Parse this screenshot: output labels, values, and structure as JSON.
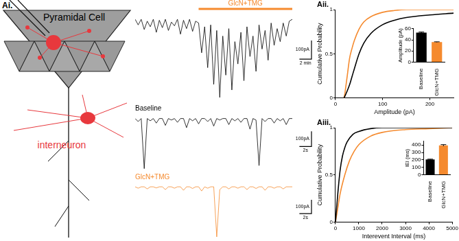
{
  "figure": {
    "panel_label": "Ai.",
    "cell_label": "Pyramidal Cell",
    "interneuron_label": "interneuron"
  },
  "chart_data": [
    {
      "type": "line",
      "tick_labels": false,
      "grid": false,
      "color": "#000000",
      "xlim": [
        0,
        1560
      ],
      "ylim": [
        -450,
        30
      ],
      "x": [
        0,
        30,
        60,
        90,
        120,
        150,
        180,
        210,
        240,
        270,
        300,
        330,
        360,
        390,
        420,
        450,
        480,
        510,
        540,
        570,
        600,
        630,
        660,
        690,
        720,
        750,
        780,
        810,
        840,
        870,
        900,
        930,
        960,
        990,
        1020,
        1050,
        1080,
        1110,
        1140,
        1170,
        1200,
        1230,
        1260,
        1290,
        1320,
        1350,
        1380,
        1410,
        1440,
        1470,
        1500,
        1530,
        1560
      ],
      "values": [
        0,
        -30,
        0,
        -55,
        -10,
        -40,
        0,
        -70,
        -5,
        -45,
        0,
        -60,
        -15,
        -35,
        0,
        -80,
        -5,
        -50,
        0,
        -65,
        -10,
        -20,
        -180,
        -40,
        -260,
        -30,
        -350,
        -60,
        -420,
        -90,
        -300,
        -50,
        -380,
        -120,
        -240,
        -70,
        -330,
        -40,
        -200,
        -90,
        -280,
        -30,
        -160,
        -60,
        -220,
        -20,
        -140,
        -50,
        -120,
        -20,
        -90,
        -10,
        0
      ],
      "drug": {
        "label": "GlcN+TMG",
        "color": "#f58a2e",
        "start": 630,
        "end": 1560
      },
      "scale_bar": {
        "x": 120,
        "x_label": "2 min",
        "y": 100,
        "y_label": "100pA"
      }
    },
    {
      "type": "line",
      "title": "Baseline",
      "tick_labels": false,
      "grid": false,
      "color": "#000000",
      "xlim": [
        0,
        26
      ],
      "ylim": [
        -350,
        30
      ],
      "x": [
        0,
        0.5,
        1,
        1.5,
        2,
        2.5,
        3,
        3.5,
        4,
        4.5,
        5,
        5.5,
        6,
        6.5,
        7,
        7.5,
        8,
        8.5,
        9,
        9.5,
        10,
        10.5,
        11,
        11.5,
        12,
        12.5,
        13,
        13.5,
        14,
        14.5,
        15,
        15.5,
        16,
        16.5,
        17,
        17.5,
        18,
        18.5,
        19,
        19.5,
        20,
        20.5,
        21,
        21.5,
        22,
        22.5,
        23,
        23.5,
        24,
        24.5,
        25,
        25.5,
        26
      ],
      "values": [
        0,
        -20,
        0,
        -330,
        0,
        -15,
        0,
        -30,
        0,
        0,
        -45,
        0,
        -10,
        0,
        -25,
        0,
        0,
        -60,
        0,
        -15,
        0,
        -35,
        0,
        0,
        -20,
        0,
        -50,
        0,
        -10,
        0,
        0,
        -40,
        0,
        -15,
        0,
        -25,
        0,
        0,
        -70,
        0,
        -10,
        -310,
        0,
        -20,
        0,
        0,
        -30,
        0,
        -15,
        0,
        -40,
        0,
        0
      ],
      "scale_bar": {
        "x": 2,
        "x_label": "2s",
        "y": 100,
        "y_label": "100pA"
      }
    },
    {
      "type": "line",
      "title": "GlcN+TMG",
      "tick_labels": false,
      "grid": false,
      "color": "#f58a2e",
      "xlim": [
        0,
        26
      ],
      "ylim": [
        -380,
        30
      ],
      "x": [
        0,
        0.5,
        1,
        1.5,
        2,
        2.5,
        3,
        3.5,
        4,
        4.5,
        5,
        5.5,
        6,
        6.5,
        7,
        7.5,
        8,
        8.5,
        9,
        9.5,
        10,
        10.5,
        11,
        11.5,
        12,
        12.5,
        13,
        13.5,
        14,
        14.5,
        15,
        15.5,
        16,
        16.5,
        17,
        17.5,
        18,
        18.5,
        19,
        19.5,
        20,
        20.5,
        21,
        21.5,
        22,
        22.5,
        23,
        23.5,
        24,
        24.5,
        25,
        25.5,
        26
      ],
      "values": [
        0,
        -10,
        0,
        0,
        -15,
        0,
        0,
        -8,
        0,
        0,
        -20,
        0,
        0,
        -10,
        0,
        0,
        -25,
        0,
        0,
        -12,
        0,
        0,
        -30,
        0,
        -10,
        0,
        0,
        -360,
        -20,
        0,
        0,
        -15,
        0,
        0,
        -10,
        0,
        0,
        -20,
        0,
        0,
        -12,
        0,
        0,
        -25,
        0,
        0,
        -10,
        0,
        0,
        -15,
        0,
        0,
        0
      ],
      "scale_bar": {
        "x": 2,
        "x_label": "2s",
        "y": 100,
        "y_label": "100pA"
      }
    },
    {
      "type": "line",
      "annotations": [
        "Aii."
      ],
      "x_label": "Amplitude (pA)",
      "y_label": "Cumulative Probability",
      "xlim": [
        0,
        250
      ],
      "xticks": [
        0,
        100,
        200
      ],
      "ylim": [
        0,
        1
      ],
      "yticks": [
        0,
        0.5,
        1
      ],
      "grid": false,
      "series": [
        {
          "color": "#000000",
          "x": [
            18,
            20,
            25,
            30,
            35,
            40,
            50,
            60,
            75,
            100,
            125,
            150,
            200,
            250
          ],
          "values": [
            0,
            0.02,
            0.08,
            0.15,
            0.24,
            0.33,
            0.5,
            0.62,
            0.73,
            0.83,
            0.88,
            0.91,
            0.94,
            0.96
          ]
        },
        {
          "color": "#f58a2e",
          "x": [
            18,
            20,
            22,
            25,
            30,
            35,
            40,
            50,
            60,
            75,
            100,
            125,
            150,
            200,
            250
          ],
          "values": [
            0,
            0.05,
            0.13,
            0.25,
            0.45,
            0.56,
            0.65,
            0.78,
            0.86,
            0.92,
            0.97,
            0.99,
            1,
            1,
            1
          ]
        }
      ]
    },
    {
      "type": "bar",
      "y_label": "Amplitude (pA)",
      "categories": [
        "Baseline",
        "GlcN+TMG"
      ],
      "values": [
        53,
        36
      ],
      "errors": [
        1,
        0.5
      ],
      "colors": [
        "#000000",
        "#f58a2e"
      ],
      "ylim": [
        0,
        60
      ],
      "yticks": [
        0,
        20,
        40,
        60
      ],
      "grid": false
    },
    {
      "type": "line",
      "annotations": [
        "Aiii."
      ],
      "x_label": "Interevent Interval (ms)",
      "y_label": "Cumulative Probability",
      "xlim": [
        0,
        5000
      ],
      "xticks": [
        0,
        1000,
        2000,
        3000,
        4000,
        5000
      ],
      "ylim": [
        0,
        1
      ],
      "yticks": [
        0,
        0.5,
        1
      ],
      "grid": false,
      "series": [
        {
          "color": "#000000",
          "x": [
            0,
            50,
            100,
            200,
            300,
            400,
            500,
            750,
            1000,
            1500,
            2000,
            3000,
            5000
          ],
          "values": [
            0,
            0.15,
            0.3,
            0.55,
            0.7,
            0.79,
            0.85,
            0.93,
            0.96,
            0.99,
            1,
            1,
            1
          ]
        },
        {
          "color": "#f58a2e",
          "x": [
            0,
            100,
            200,
            400,
            600,
            800,
            1000,
            1500,
            2000,
            3000,
            4000,
            5000
          ],
          "values": [
            0,
            0.15,
            0.3,
            0.5,
            0.65,
            0.75,
            0.82,
            0.91,
            0.95,
            0.98,
            0.99,
            1
          ]
        }
      ]
    },
    {
      "type": "bar",
      "y_label": "IEI (ms)",
      "categories": [
        "Baseline",
        "GlcN+TMG"
      ],
      "values": [
        205,
        395
      ],
      "errors": [
        5,
        10
      ],
      "colors": [
        "#000000",
        "#f58a2e"
      ],
      "ylim": [
        0,
        450
      ],
      "yticks": [
        0,
        100,
        200,
        300,
        400
      ],
      "grid": false
    }
  ]
}
